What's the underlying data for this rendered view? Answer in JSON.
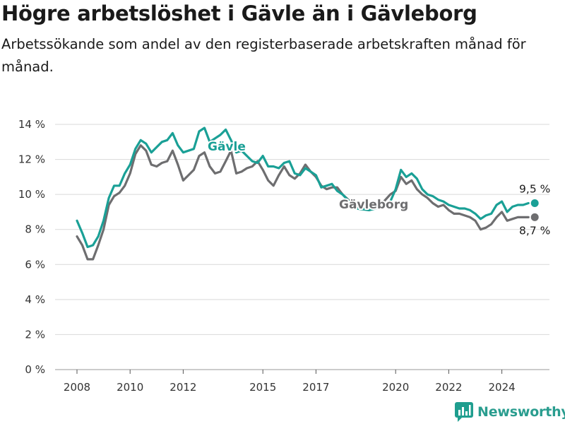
{
  "title": "Högre arbetslöshet i Gävle än i Gävleborg",
  "subtitle": "Arbetssökande som andel av den registerbaserade arbetskraften månad för månad.",
  "brand": {
    "name": "Newsworthy",
    "color": "#1f9e8f"
  },
  "colors": {
    "gavle": "#1aa096",
    "gavleborg": "#6e6e70",
    "grid": "#d9d9d9",
    "axis": "#333333"
  },
  "chart_data": {
    "type": "line",
    "ylim": [
      0,
      14
    ],
    "xlim": [
      2007.2,
      2025.8
    ],
    "y_ticks": [
      0,
      2,
      4,
      6,
      8,
      10,
      12,
      14
    ],
    "y_tick_labels": [
      "0 %",
      "2 %",
      "4 %",
      "6 %",
      "8 %",
      "10 %",
      "12 %",
      "14 %"
    ],
    "x_ticks": [
      2008,
      2010,
      2012,
      2015,
      2017,
      2020,
      2022,
      2024
    ],
    "x_tick_labels": [
      "2008",
      "2010",
      "2012",
      "2015",
      "2017",
      "2020",
      "2022",
      "2024"
    ],
    "grid": true,
    "series": [
      {
        "name": "Gävle",
        "color": "#1aa096",
        "end_label": "9,5 %",
        "points": [
          [
            2008.0,
            8.5
          ],
          [
            2008.2,
            7.8
          ],
          [
            2008.4,
            7.0
          ],
          [
            2008.6,
            7.1
          ],
          [
            2008.8,
            7.6
          ],
          [
            2009.0,
            8.5
          ],
          [
            2009.2,
            9.8
          ],
          [
            2009.4,
            10.5
          ],
          [
            2009.6,
            10.5
          ],
          [
            2009.8,
            11.2
          ],
          [
            2010.0,
            11.7
          ],
          [
            2010.2,
            12.6
          ],
          [
            2010.4,
            13.1
          ],
          [
            2010.6,
            12.9
          ],
          [
            2010.8,
            12.4
          ],
          [
            2011.0,
            12.7
          ],
          [
            2011.2,
            13.0
          ],
          [
            2011.4,
            13.1
          ],
          [
            2011.6,
            13.5
          ],
          [
            2011.8,
            12.8
          ],
          [
            2012.0,
            12.4
          ],
          [
            2012.2,
            12.5
          ],
          [
            2012.4,
            12.6
          ],
          [
            2012.6,
            13.6
          ],
          [
            2012.8,
            13.8
          ],
          [
            2013.0,
            13.0
          ],
          [
            2013.2,
            13.2
          ],
          [
            2013.4,
            13.4
          ],
          [
            2013.6,
            13.7
          ],
          [
            2013.8,
            13.1
          ],
          [
            2014.0,
            12.4
          ],
          [
            2014.2,
            12.5
          ],
          [
            2014.4,
            12.2
          ],
          [
            2014.6,
            11.9
          ],
          [
            2014.8,
            11.8
          ],
          [
            2015.0,
            12.2
          ],
          [
            2015.2,
            11.6
          ],
          [
            2015.4,
            11.6
          ],
          [
            2015.6,
            11.5
          ],
          [
            2015.8,
            11.8
          ],
          [
            2016.0,
            11.9
          ],
          [
            2016.2,
            11.2
          ],
          [
            2016.4,
            11.1
          ],
          [
            2016.6,
            11.5
          ],
          [
            2016.8,
            11.3
          ],
          [
            2017.0,
            11.1
          ],
          [
            2017.2,
            10.4
          ],
          [
            2017.4,
            10.5
          ],
          [
            2017.6,
            10.6
          ],
          [
            2017.8,
            10.2
          ],
          [
            2018.0,
            10.0
          ],
          [
            2018.5,
            9.2
          ],
          [
            2019.0,
            9.1
          ],
          [
            2019.5,
            9.3
          ],
          [
            2019.8,
            9.6
          ],
          [
            2020.0,
            10.3
          ],
          [
            2020.2,
            11.4
          ],
          [
            2020.4,
            11.0
          ],
          [
            2020.6,
            11.2
          ],
          [
            2020.8,
            10.9
          ],
          [
            2021.0,
            10.3
          ],
          [
            2021.2,
            10.0
          ],
          [
            2021.4,
            9.9
          ],
          [
            2021.6,
            9.7
          ],
          [
            2021.8,
            9.6
          ],
          [
            2022.0,
            9.4
          ],
          [
            2022.2,
            9.3
          ],
          [
            2022.4,
            9.2
          ],
          [
            2022.6,
            9.2
          ],
          [
            2022.8,
            9.1
          ],
          [
            2023.0,
            8.9
          ],
          [
            2023.2,
            8.6
          ],
          [
            2023.4,
            8.8
          ],
          [
            2023.6,
            8.9
          ],
          [
            2023.8,
            9.4
          ],
          [
            2024.0,
            9.6
          ],
          [
            2024.2,
            9.0
          ],
          [
            2024.4,
            9.3
          ],
          [
            2024.6,
            9.4
          ],
          [
            2024.8,
            9.4
          ],
          [
            2025.0,
            9.5
          ]
        ]
      },
      {
        "name": "Gävleborg",
        "color": "#6e6e70",
        "end_label": "8,7 %",
        "points": [
          [
            2008.0,
            7.6
          ],
          [
            2008.2,
            7.1
          ],
          [
            2008.4,
            6.3
          ],
          [
            2008.6,
            6.3
          ],
          [
            2008.8,
            7.1
          ],
          [
            2009.0,
            8.0
          ],
          [
            2009.2,
            9.4
          ],
          [
            2009.4,
            9.9
          ],
          [
            2009.6,
            10.1
          ],
          [
            2009.8,
            10.5
          ],
          [
            2010.0,
            11.2
          ],
          [
            2010.2,
            12.3
          ],
          [
            2010.4,
            12.8
          ],
          [
            2010.6,
            12.5
          ],
          [
            2010.8,
            11.7
          ],
          [
            2011.0,
            11.6
          ],
          [
            2011.2,
            11.8
          ],
          [
            2011.4,
            11.9
          ],
          [
            2011.6,
            12.5
          ],
          [
            2011.8,
            11.7
          ],
          [
            2012.0,
            10.8
          ],
          [
            2012.2,
            11.1
          ],
          [
            2012.4,
            11.4
          ],
          [
            2012.6,
            12.2
          ],
          [
            2012.8,
            12.4
          ],
          [
            2013.0,
            11.6
          ],
          [
            2013.2,
            11.2
          ],
          [
            2013.4,
            11.3
          ],
          [
            2013.6,
            11.9
          ],
          [
            2013.8,
            12.5
          ],
          [
            2014.0,
            11.2
          ],
          [
            2014.2,
            11.3
          ],
          [
            2014.4,
            11.5
          ],
          [
            2014.6,
            11.6
          ],
          [
            2014.8,
            11.9
          ],
          [
            2015.0,
            11.4
          ],
          [
            2015.2,
            10.8
          ],
          [
            2015.4,
            10.5
          ],
          [
            2015.6,
            11.1
          ],
          [
            2015.8,
            11.6
          ],
          [
            2016.0,
            11.1
          ],
          [
            2016.2,
            10.9
          ],
          [
            2016.4,
            11.2
          ],
          [
            2016.6,
            11.7
          ],
          [
            2016.8,
            11.3
          ],
          [
            2017.0,
            11.0
          ],
          [
            2017.2,
            10.5
          ],
          [
            2017.4,
            10.3
          ],
          [
            2017.6,
            10.4
          ],
          [
            2017.8,
            10.4
          ],
          [
            2018.0,
            10.0
          ],
          [
            2018.5,
            9.3
          ],
          [
            2019.0,
            9.1
          ],
          [
            2019.5,
            9.5
          ],
          [
            2019.8,
            10.0
          ],
          [
            2020.0,
            10.2
          ],
          [
            2020.2,
            11.0
          ],
          [
            2020.4,
            10.6
          ],
          [
            2020.6,
            10.8
          ],
          [
            2020.8,
            10.3
          ],
          [
            2021.0,
            10.0
          ],
          [
            2021.2,
            9.8
          ],
          [
            2021.4,
            9.5
          ],
          [
            2021.6,
            9.3
          ],
          [
            2021.8,
            9.4
          ],
          [
            2022.0,
            9.1
          ],
          [
            2022.2,
            8.9
          ],
          [
            2022.4,
            8.9
          ],
          [
            2022.6,
            8.8
          ],
          [
            2022.8,
            8.7
          ],
          [
            2023.0,
            8.5
          ],
          [
            2023.2,
            8.0
          ],
          [
            2023.4,
            8.1
          ],
          [
            2023.6,
            8.3
          ],
          [
            2023.8,
            8.7
          ],
          [
            2024.0,
            9.0
          ],
          [
            2024.2,
            8.5
          ],
          [
            2024.4,
            8.6
          ],
          [
            2024.6,
            8.7
          ],
          [
            2024.8,
            8.7
          ],
          [
            2025.0,
            8.7
          ]
        ]
      }
    ]
  }
}
